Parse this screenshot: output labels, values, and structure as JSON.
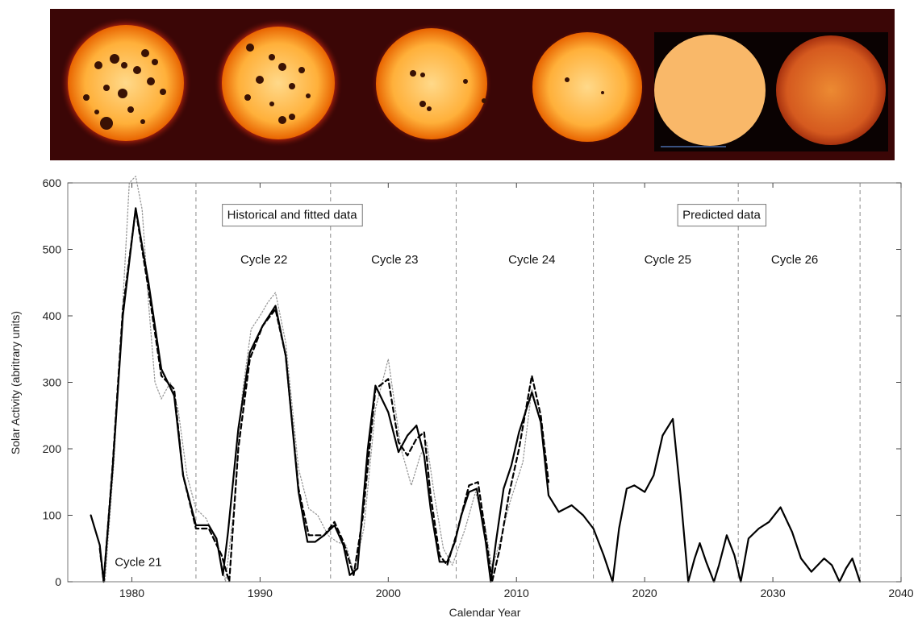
{
  "images_strip": {
    "panels": [
      {
        "icon": "sun-many-spots-icon",
        "spot_level": "very high"
      },
      {
        "icon": "sun-many-spots-icon",
        "spot_level": "high"
      },
      {
        "icon": "sun-few-spots-icon",
        "spot_level": "medium"
      },
      {
        "icon": "sun-few-spots-icon",
        "spot_level": "low"
      },
      {
        "icon": "sun-no-spots-icon",
        "spot_level": "none"
      },
      {
        "icon": "sun-no-spots-icon",
        "spot_level": "none"
      }
    ],
    "colors": {
      "background": "#3b0606",
      "sun_light": "#ffb03a",
      "sun_core": "#ffd98a",
      "sun_dark": "#e86400",
      "pale_sun": "#f9b869",
      "dim_sun": "#d55a1f"
    }
  },
  "chart_data": {
    "type": "line",
    "xlabel": "Calendar Year",
    "ylabel": "Solar Activity (abritrary units)",
    "xlim": [
      1975,
      2040
    ],
    "ylim": [
      0,
      600
    ],
    "x_ticks": [
      1980,
      1990,
      2000,
      2010,
      2020,
      2030,
      2040
    ],
    "y_ticks": [
      0,
      100,
      200,
      300,
      400,
      500,
      600
    ],
    "cycle_boundaries": [
      1985,
      1995.5,
      2005.3,
      2016,
      2027.3,
      2036.8
    ],
    "annotations": [
      {
        "text": "Historical and fitted data",
        "boxed": true,
        "x": 1992.5,
        "y": 552
      },
      {
        "text": "Predicted data",
        "boxed": true,
        "x": 2026,
        "y": 552
      },
      {
        "text": "Cycle 21",
        "x": 1980.5,
        "y": 30
      },
      {
        "text": "Cycle 22",
        "x": 1990.3,
        "y": 485
      },
      {
        "text": "Cycle 23",
        "x": 2000.5,
        "y": 485
      },
      {
        "text": "Cycle 24",
        "x": 2011.2,
        "y": 485
      },
      {
        "text": "Cycle 25",
        "x": 2021.8,
        "y": 485
      },
      {
        "text": "Cycle 26",
        "x": 2031.7,
        "y": 485
      }
    ],
    "series": [
      {
        "style": "solid",
        "color": "#000000",
        "x": [
          1976.8,
          1977.5,
          1977.8,
          1978.5,
          1979.3,
          1980.3,
          1981.3,
          1982.3,
          1983.3,
          1984.0,
          1985.0,
          1986.0,
          1986.6,
          1987.1,
          1987.5,
          1988.3,
          1989.2,
          1990.2,
          1991.2,
          1992.0,
          1993.0,
          1993.7,
          1994.3,
          1995.0,
          1995.8,
          1996.5,
          1997.0,
          1997.6,
          1998.0,
          1998.4,
          1999.0,
          2000.0,
          2000.8,
          2001.5,
          2002.2,
          2002.8,
          2003.3,
          2004.0,
          2004.6,
          2005.2,
          2005.7,
          2006.3,
          2006.9,
          2007.6,
          2008.0,
          2008.4,
          2009.0,
          2009.6,
          2010.2,
          2011.2,
          2011.9,
          2012.5,
          2013.3,
          2014.3,
          2015.2,
          2016.0,
          2016.8,
          2017.5,
          2018.0,
          2018.6,
          2019.2,
          2020.0,
          2020.7,
          2021.4,
          2022.2,
          2022.8,
          2023.4,
          2023.9,
          2024.3,
          2024.8,
          2025.4,
          2025.8,
          2026.4,
          2027.0,
          2027.5,
          2028.1,
          2028.9,
          2029.7,
          2030.6,
          2031.5,
          2032.2,
          2033.0,
          2034.0,
          2034.6,
          2035.2,
          2035.7,
          2036.2,
          2036.8
        ],
        "y": [
          100,
          55,
          0,
          170,
          400,
          562,
          450,
          320,
          280,
          160,
          85,
          85,
          65,
          10,
          75,
          230,
          345,
          385,
          415,
          340,
          135,
          60,
          60,
          70,
          85,
          55,
          10,
          20,
          110,
          200,
          295,
          255,
          195,
          220,
          235,
          190,
          110,
          30,
          30,
          60,
          100,
          135,
          140,
          60,
          0,
          60,
          140,
          175,
          225,
          285,
          240,
          130,
          105,
          115,
          100,
          80,
          40,
          0,
          80,
          140,
          145,
          135,
          160,
          220,
          245,
          130,
          0,
          35,
          58,
          30,
          0,
          25,
          70,
          40,
          0,
          65,
          80,
          90,
          112,
          75,
          35,
          15,
          35,
          25,
          0,
          20,
          35,
          0
        ]
      },
      {
        "style": "dashed",
        "color": "#000000",
        "x": [
          1977.5,
          1977.8,
          1978.5,
          1979.3,
          1980.3,
          1981.3,
          1982.3,
          1983.3,
          1984.0,
          1985.0,
          1986.0,
          1987.0,
          1987.6,
          1988.3,
          1989.2,
          1990.2,
          1991.2,
          1992.0,
          1993.0,
          1993.8,
          1995.0,
          1995.8,
          1996.5,
          1997.3,
          1998.0,
          1999.0,
          2000.0,
          2000.8,
          2001.5,
          2002.2,
          2002.8,
          2003.3,
          2004.0,
          2004.6,
          2005.3,
          2006.3,
          2007.0,
          2007.6,
          2008.1,
          2008.7,
          2009.4,
          2010.2,
          2011.2,
          2011.9,
          2012.5
        ],
        "y": [
          50,
          0,
          175,
          410,
          560,
          440,
          310,
          290,
          160,
          80,
          80,
          40,
          0,
          200,
          335,
          385,
          410,
          340,
          140,
          70,
          70,
          90,
          60,
          10,
          95,
          290,
          305,
          210,
          190,
          215,
          225,
          130,
          40,
          25,
          70,
          145,
          150,
          70,
          0,
          50,
          130,
          200,
          310,
          250,
          150
        ]
      },
      {
        "style": "dotted",
        "color": "#999999",
        "x": [
          1977.5,
          1977.9,
          1978.6,
          1979.3,
          1979.8,
          1980.3,
          1980.8,
          1981.3,
          1981.8,
          1982.3,
          1983.0,
          1983.6,
          1984.3,
          1985.0,
          1985.8,
          1986.6,
          1987.3,
          1987.9,
          1988.6,
          1989.3,
          1990.0,
          1990.6,
          1991.2,
          1992.0,
          1993.0,
          1993.8,
          1994.5,
          1995.3,
          1996.0,
          1996.7,
          1997.3,
          1998.1,
          1999.0,
          2000.0,
          2001.0,
          2001.8,
          2002.5,
          2003.0,
          2003.6,
          2004.3,
          2005.0,
          2006.0,
          2006.8,
          2007.5,
          2008.1,
          2008.7,
          2009.5,
          2010.5,
          2011.2,
          2011.9,
          2012.5
        ],
        "y": [
          40,
          0,
          180,
          420,
          600,
          610,
          560,
          420,
          300,
          275,
          300,
          260,
          160,
          110,
          95,
          60,
          0,
          100,
          280,
          380,
          400,
          420,
          435,
          360,
          170,
          110,
          100,
          70,
          60,
          55,
          15,
          80,
          260,
          335,
          200,
          145,
          190,
          210,
          130,
          50,
          25,
          80,
          135,
          90,
          20,
          60,
          120,
          180,
          290,
          240,
          140
        ]
      }
    ]
  }
}
